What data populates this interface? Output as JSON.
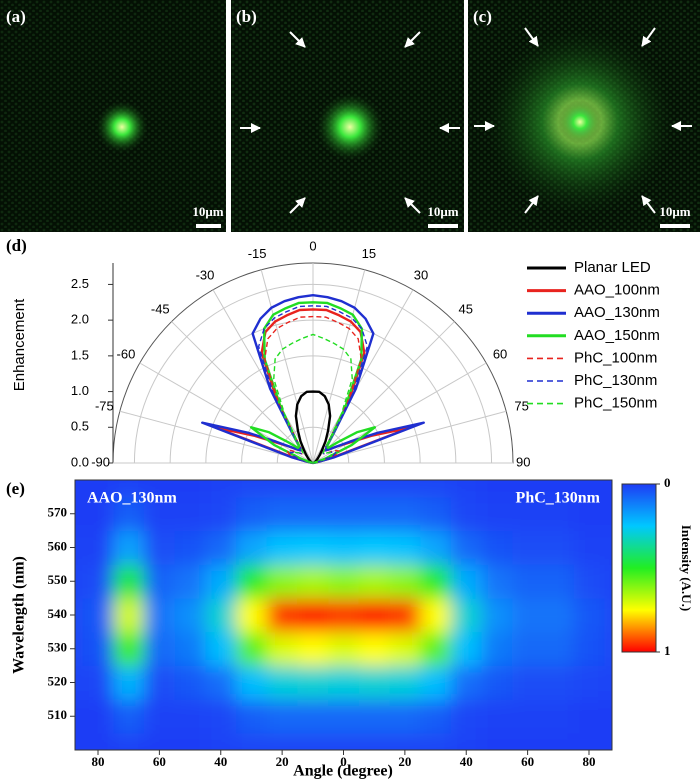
{
  "panels": [
    {
      "label": "(a)",
      "scale_bar": "10μm"
    },
    {
      "label": "(b)",
      "scale_bar": "10μm"
    },
    {
      "label": "(c)",
      "scale_bar": "10μm"
    }
  ],
  "chart_data": [
    {
      "type": "polar",
      "label": "(d)",
      "y_label": "Enhancement",
      "x": [
        -90,
        -85,
        -80,
        -75,
        -70,
        -65,
        -60,
        -55,
        -50,
        -45,
        -40,
        -35,
        -30,
        -25,
        -20,
        -15,
        -10,
        -5,
        0,
        5,
        10,
        15,
        20,
        25,
        30,
        35,
        40,
        45,
        50,
        55,
        60,
        65,
        70,
        75,
        80,
        85,
        90
      ],
      "series": [
        {
          "name": "Planar LED",
          "color": "#000000",
          "dashed": false,
          "values": [
            0,
            0,
            0,
            0,
            0.01,
            0.02,
            0.03,
            0.05,
            0.07,
            0.1,
            0.15,
            0.22,
            0.35,
            0.5,
            0.7,
            0.85,
            0.95,
            1.0,
            1.0,
            1.0,
            0.95,
            0.85,
            0.7,
            0.5,
            0.35,
            0.22,
            0.15,
            0.1,
            0.07,
            0.05,
            0.03,
            0.02,
            0.01,
            0,
            0,
            0,
            0
          ]
        },
        {
          "name": "AAO_100nm",
          "color": "#e8231e",
          "dashed": false,
          "values": [
            0,
            0,
            0.05,
            0.25,
            1.45,
            0.9,
            0.55,
            0.4,
            0.3,
            0.25,
            0.3,
            0.45,
            1.0,
            1.7,
            1.95,
            2.05,
            2.1,
            2.15,
            2.15,
            2.15,
            2.1,
            2.05,
            1.95,
            1.7,
            1.0,
            0.45,
            0.3,
            0.25,
            0.3,
            0.4,
            0.55,
            0.9,
            1.45,
            0.25,
            0.05,
            0,
            0
          ]
        },
        {
          "name": "AAO_130nm",
          "color": "#1f2fd0",
          "dashed": false,
          "values": [
            0,
            0,
            0.05,
            0.3,
            1.65,
            1.0,
            0.6,
            0.4,
            0.3,
            0.25,
            0.3,
            0.5,
            1.2,
            2.0,
            2.15,
            2.25,
            2.3,
            2.33,
            2.35,
            2.33,
            2.3,
            2.25,
            2.15,
            2.0,
            1.2,
            0.5,
            0.3,
            0.25,
            0.3,
            0.4,
            0.6,
            1.0,
            1.65,
            0.3,
            0.05,
            0,
            0
          ]
        },
        {
          "name": "AAO_150nm",
          "color": "#22dd22",
          "dashed": false,
          "values": [
            0,
            0,
            0,
            0.05,
            0.2,
            0.6,
            1.0,
            0.75,
            0.45,
            0.3,
            0.3,
            0.45,
            0.9,
            1.6,
            2.0,
            2.15,
            2.2,
            2.25,
            2.25,
            2.25,
            2.2,
            2.15,
            2.0,
            1.6,
            0.9,
            0.45,
            0.3,
            0.3,
            0.45,
            0.75,
            1.0,
            0.6,
            0.2,
            0.05,
            0,
            0,
            0
          ]
        },
        {
          "name": "PhC_100nm",
          "color": "#e8231e",
          "dashed": true,
          "values": [
            0,
            0,
            0.02,
            0.1,
            0.35,
            0.4,
            0.35,
            0.25,
            0.2,
            0.2,
            0.25,
            0.4,
            0.95,
            1.6,
            1.85,
            1.95,
            2.0,
            2.05,
            2.05,
            2.05,
            2.0,
            1.95,
            1.85,
            1.6,
            0.95,
            0.4,
            0.25,
            0.2,
            0.2,
            0.25,
            0.35,
            0.4,
            0.35,
            0.1,
            0.02,
            0,
            0
          ]
        },
        {
          "name": "PhC_130nm",
          "color": "#1f2fd0",
          "dashed": true,
          "values": [
            0,
            0,
            0.02,
            0.1,
            0.3,
            0.35,
            0.3,
            0.25,
            0.2,
            0.2,
            0.25,
            0.45,
            1.1,
            1.8,
            2.0,
            2.1,
            2.15,
            2.2,
            2.2,
            2.2,
            2.15,
            2.1,
            2.0,
            1.8,
            1.1,
            0.45,
            0.25,
            0.2,
            0.2,
            0.25,
            0.3,
            0.35,
            0.3,
            0.1,
            0.02,
            0,
            0
          ]
        },
        {
          "name": "PhC_150nm",
          "color": "#22dd22",
          "dashed": true,
          "values": [
            0,
            0,
            0,
            0.05,
            0.2,
            0.3,
            0.3,
            0.25,
            0.2,
            0.2,
            0.25,
            0.4,
            0.8,
            1.3,
            1.55,
            1.65,
            1.7,
            1.75,
            1.8,
            1.75,
            1.7,
            1.65,
            1.55,
            1.3,
            0.8,
            0.4,
            0.25,
            0.2,
            0.2,
            0.25,
            0.3,
            0.3,
            0.2,
            0.05,
            0,
            0,
            0
          ]
        }
      ],
      "rlim": [
        0,
        2.8
      ],
      "rticks": [
        {
          "value": 0,
          "label": "0.0"
        },
        0.5,
        {
          "value": 1,
          "label": "1.0"
        },
        1.5,
        {
          "value": 2,
          "label": "2.0"
        },
        2.5
      ],
      "xticks": [
        -90,
        -75,
        -60,
        -45,
        -30,
        -15,
        0,
        15,
        30,
        45,
        60,
        75,
        90
      ],
      "grid": true
    },
    {
      "type": "heatmap",
      "label": "(e)",
      "x_label": "Angle (degree)",
      "y_label": "Wavelength (nm)",
      "annotations": [
        "AAO_130nm",
        "PhC_130nm"
      ],
      "x": [
        -90,
        -80,
        -70,
        -60,
        -50,
        -40,
        -30,
        -20,
        -10,
        0,
        10,
        20,
        30,
        40,
        50,
        60,
        70,
        80,
        90
      ],
      "y": [
        500,
        510,
        520,
        530,
        540,
        550,
        560,
        570,
        580
      ],
      "values": [
        [
          0,
          0,
          0.01,
          0,
          0,
          0.01,
          0.02,
          0.02,
          0.02,
          0.02,
          0.02,
          0.02,
          0.02,
          0.01,
          0,
          0,
          0,
          0,
          0
        ],
        [
          0,
          0,
          0.06,
          0.01,
          0.01,
          0.02,
          0.06,
          0.08,
          0.08,
          0.08,
          0.08,
          0.08,
          0.06,
          0.02,
          0.01,
          0.01,
          0.01,
          0,
          0
        ],
        [
          0.01,
          0.02,
          0.21,
          0.03,
          0.05,
          0.09,
          0.23,
          0.29,
          0.3,
          0.29,
          0.3,
          0.29,
          0.23,
          0.09,
          0.05,
          0.03,
          0.03,
          0.02,
          0.01
        ],
        [
          0.02,
          0.04,
          0.53,
          0.08,
          0.11,
          0.23,
          0.56,
          0.71,
          0.75,
          0.71,
          0.75,
          0.71,
          0.56,
          0.23,
          0.11,
          0.08,
          0.08,
          0.04,
          0.02
        ],
        [
          0.02,
          0.05,
          0.7,
          0.1,
          0.15,
          0.3,
          0.75,
          0.95,
          1,
          0.95,
          1,
          0.95,
          0.75,
          0.3,
          0.15,
          0.1,
          0.1,
          0.05,
          0.02
        ],
        [
          0.01,
          0.03,
          0.46,
          0.07,
          0.1,
          0.2,
          0.49,
          0.62,
          0.65,
          0.62,
          0.65,
          0.62,
          0.49,
          0.2,
          0.1,
          0.07,
          0.07,
          0.03,
          0.01
        ],
        [
          0.01,
          0.01,
          0.18,
          0.03,
          0.04,
          0.08,
          0.19,
          0.24,
          0.25,
          0.24,
          0.25,
          0.24,
          0.19,
          0.08,
          0.04,
          0.03,
          0.03,
          0.01,
          0.01
        ],
        [
          0,
          0,
          0.06,
          0.01,
          0.01,
          0.02,
          0.06,
          0.08,
          0.08,
          0.08,
          0.08,
          0.08,
          0.06,
          0.02,
          0.01,
          0.01,
          0.01,
          0,
          0
        ],
        [
          0,
          0,
          0.01,
          0,
          0,
          0.01,
          0.02,
          0.02,
          0.02,
          0.02,
          0.02,
          0.02,
          0.02,
          0.01,
          0,
          0,
          0,
          0,
          0
        ]
      ],
      "xlim": [
        -87.5,
        87.5
      ],
      "ylim": [
        500,
        580
      ],
      "xticks": [
        {
          "value": -80,
          "label": "80"
        },
        {
          "value": -60,
          "label": "60"
        },
        {
          "value": -40,
          "label": "40"
        },
        {
          "value": -20,
          "label": "20"
        },
        0,
        20,
        40,
        60,
        80
      ],
      "yticks": [
        510,
        520,
        530,
        540,
        550,
        560,
        570
      ],
      "zlim": [
        0,
        1
      ],
      "zticks": [
        0,
        1
      ],
      "colorbar_label": "Intensity (A.U.)",
      "colormap": [
        "#1e3cf5",
        "#00c8ff",
        "#22ee22",
        "#ffff00",
        "#ff0000"
      ]
    }
  ]
}
